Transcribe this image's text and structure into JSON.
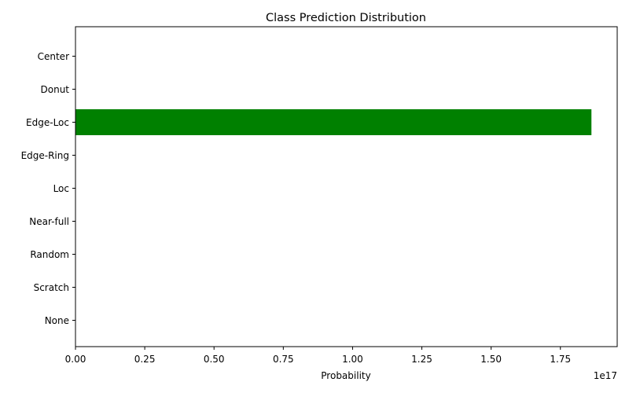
{
  "chart_data": {
    "type": "bar",
    "orientation": "horizontal",
    "title": "Class Prediction Distribution",
    "xlabel": "Probability",
    "ylabel": "",
    "x_offset_text": "1e17",
    "categories": [
      "Center",
      "Donut",
      "Edge-Loc",
      "Edge-Ring",
      "Loc",
      "Near-full",
      "Random",
      "Scratch",
      "None"
    ],
    "values": [
      0,
      0,
      1.862e+17,
      0,
      0,
      0,
      0,
      0,
      0
    ],
    "xlim": [
      0,
      1.955e+17
    ],
    "x_ticks": [
      0,
      2.5e+16,
      5e+16,
      7.5e+16,
      1e+17,
      1.25e+17,
      1.5e+17,
      1.75e+17
    ],
    "x_tick_labels": [
      "0.00",
      "0.25",
      "0.50",
      "0.75",
      "1.00",
      "1.25",
      "1.50",
      "1.75"
    ],
    "bar_color": "#008000",
    "grid": false,
    "legend": "none"
  }
}
